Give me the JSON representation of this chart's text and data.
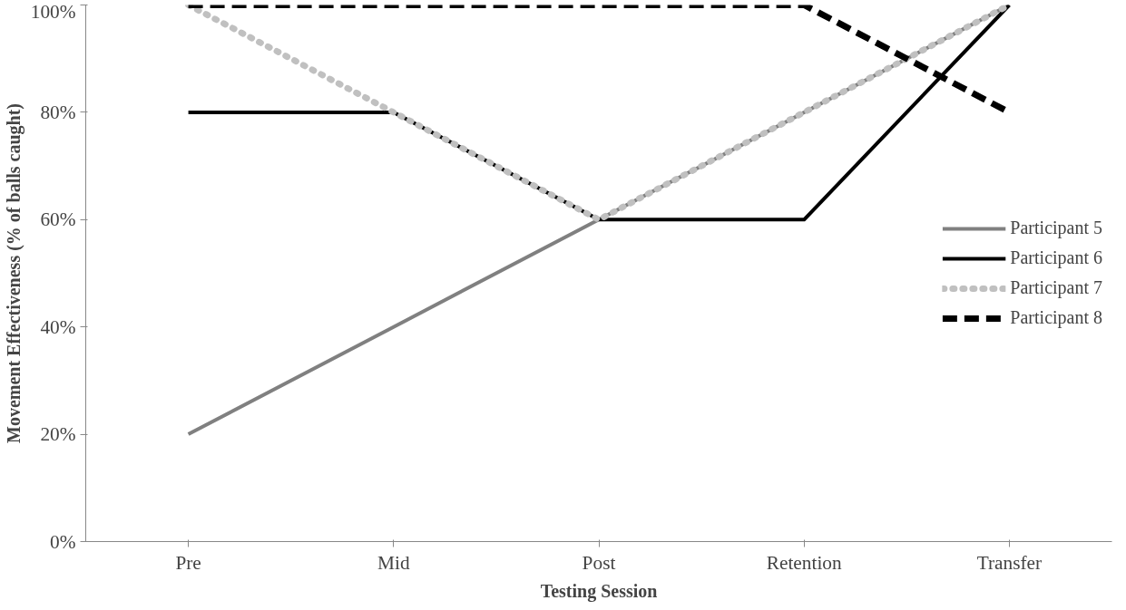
{
  "chart_data": {
    "type": "line",
    "xlabel": "Testing Session",
    "ylabel": "Movement Effectiveness (% of balls caught)",
    "categories": [
      "Pre",
      "Mid",
      "Post",
      "Retention",
      "Transfer"
    ],
    "series": [
      {
        "name": "Participant 5",
        "color": "#808080",
        "line_style": "solid",
        "values": [
          20,
          40,
          60,
          80,
          100
        ]
      },
      {
        "name": "Participant 6",
        "color": "#000000",
        "line_style": "solid",
        "values": [
          80,
          80,
          60,
          60,
          100
        ]
      },
      {
        "name": "Participant 7",
        "color": "#c0c0c0",
        "line_style": "dotted",
        "values": [
          100,
          80,
          60,
          80,
          100
        ]
      },
      {
        "name": "Participant 8",
        "color": "#000000",
        "line_style": "dashed",
        "values": [
          100,
          100,
          100,
          100,
          80
        ]
      }
    ],
    "ylim": [
      0,
      100
    ],
    "yticks": [
      {
        "value": 0,
        "label": "0%"
      },
      {
        "value": 20,
        "label": "20%"
      },
      {
        "value": 40,
        "label": "40%"
      },
      {
        "value": 60,
        "label": "60%"
      },
      {
        "value": 80,
        "label": "80%"
      },
      {
        "value": 100,
        "label": "100%"
      }
    ],
    "grid": false,
    "legend": "right",
    "marker": "none"
  }
}
